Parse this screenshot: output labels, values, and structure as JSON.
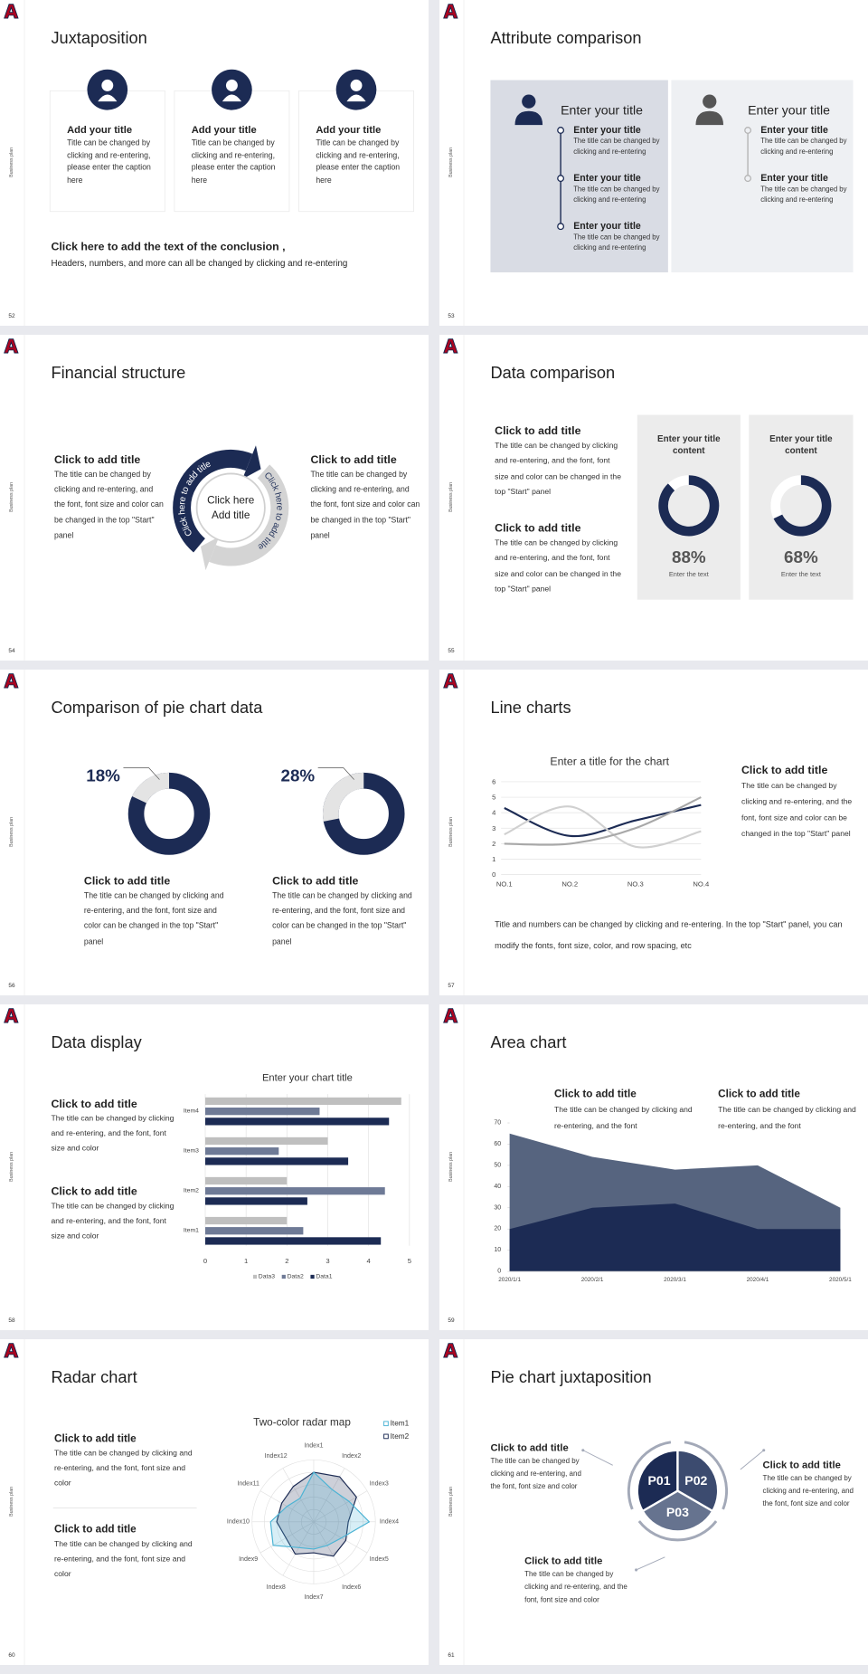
{
  "side_label": "Business plan",
  "slides": [
    {
      "number": 52,
      "title": "Juxtaposition",
      "cards": [
        {
          "title": "Add your title",
          "text": "Title can be changed by clicking and re-entering, please enter the caption here"
        },
        {
          "title": "Add your title",
          "text": "Title can be changed by clicking and re-entering, please enter the caption here"
        },
        {
          "title": "Add your title",
          "text": "Title can be changed by clicking and re-entering, please enter the caption here"
        }
      ],
      "conclusion_title": "Click here to add the text of the conclusion ,",
      "conclusion_text": "Headers, numbers, and more can all be changed by clicking and re-entering"
    },
    {
      "number": 53,
      "title": "Attribute comparison",
      "panels": [
        {
          "heading": "Enter your title",
          "items": [
            {
              "title": "Enter your title",
              "text": "The title can be changed by clicking and re-entering"
            },
            {
              "title": "Enter your title",
              "text": "The title can be changed by clicking and re-entering"
            },
            {
              "title": "Enter your title",
              "text": "The title can be changed by clicking and re-entering"
            }
          ]
        },
        {
          "heading": "Enter your title",
          "items": [
            {
              "title": "Enter your title",
              "text": "The title can be changed by clicking and re-entering"
            },
            {
              "title": "Enter your title",
              "text": "The title can be changed by clicking and re-entering"
            }
          ]
        }
      ]
    },
    {
      "number": 54,
      "title": "Financial structure",
      "blocks": [
        {
          "title": "Click to add title",
          "text": "The title can be changed by clicking and re-entering, and the font, font size and color can be changed in the top \"Start\" panel"
        },
        {
          "title": "Click to add title",
          "text": "The title can be changed by clicking and re-entering, and the font, font size and color can be changed in the top \"Start\" panel"
        }
      ],
      "cycle_labels": [
        "Click here to add title",
        "Click here to add title"
      ],
      "center": [
        "Click here",
        "Add title"
      ]
    },
    {
      "number": 55,
      "title": "Data comparison",
      "blocks": [
        {
          "title": "Click to add title",
          "text": "The title can be changed by clicking and re-entering, and the font, font size and color can be changed in the top \"Start\" panel"
        },
        {
          "title": "Click to add title",
          "text": "The title can be changed by clicking and re-entering, and the font, font size and color can be changed in the top \"Start\" panel"
        }
      ],
      "cards": [
        {
          "title": "Enter your title content",
          "value": 88,
          "value_label": "88%",
          "caption": "Enter the text"
        },
        {
          "title": "Enter your title content",
          "value": 68,
          "value_label": "68%",
          "caption": "Enter the text"
        }
      ]
    },
    {
      "number": 56,
      "title": "Comparison of pie chart data",
      "donuts": [
        {
          "value": 18,
          "value_label": "18%"
        },
        {
          "value": 28,
          "value_label": "28%"
        }
      ],
      "blocks": [
        {
          "title": "Click to add title",
          "text": "The title can be changed by clicking and re-entering, and the font, font size and color can be changed in the top \"Start\" panel"
        },
        {
          "title": "Click to add title",
          "text": "The title can be changed by clicking and re-entering, and the font, font size and color can be changed in the top \"Start\" panel"
        }
      ]
    },
    {
      "number": 57,
      "title": "Line charts",
      "chart": {
        "type": "line",
        "title": "Enter a title for the chart",
        "categories": [
          "NO.1",
          "NO.2",
          "NO.3",
          "NO.4"
        ],
        "ylim": [
          0,
          6
        ],
        "yticks": [
          0,
          1,
          2,
          3,
          4,
          5,
          6
        ],
        "series": [
          {
            "color": "#1c2b54",
            "values": [
              4.3,
              2.5,
              3.5,
              4.5
            ]
          },
          {
            "color": "#d0d0d0",
            "values": [
              2.6,
              4.4,
              1.8,
              2.8
            ]
          },
          {
            "color": "#a8a8a8",
            "values": [
              2.0,
              2.0,
              3.0,
              5.0
            ]
          }
        ]
      },
      "block": {
        "title": "Click to add title",
        "text": "The title can be changed by clicking and re-entering, and the font, font size and color can be changed in the top \"Start\" panel"
      },
      "note": "Title and numbers can be changed by clicking and re-entering. In the top \"Start\" panel, you can modify the fonts, font size, color, and row spacing, etc"
    },
    {
      "number": 58,
      "title": "Data display",
      "chart": {
        "type": "bar",
        "title": "Enter your chart title",
        "categories": [
          "Item1",
          "Item2",
          "Item3",
          "Item4"
        ],
        "xlim": [
          0,
          5
        ],
        "xticks": [
          0,
          1,
          2,
          3,
          4,
          5
        ],
        "series": [
          {
            "name": "Data3",
            "color": "#bfbfbf",
            "values": [
              2.0,
              2.0,
              3.0,
              4.8
            ]
          },
          {
            "name": "Data2",
            "color": "#6e7a96",
            "values": [
              2.4,
              4.4,
              1.8,
              2.8
            ]
          },
          {
            "name": "Data1",
            "color": "#1c2b54",
            "values": [
              4.3,
              2.5,
              3.5,
              4.5
            ]
          }
        ]
      },
      "blocks": [
        {
          "title": "Click to add title",
          "text": "The title can be changed by clicking and re-entering, and the font, font size and color"
        },
        {
          "title": "Click to add title",
          "text": "The title can be changed by clicking and re-entering, and the font, font size and color"
        }
      ]
    },
    {
      "number": 59,
      "title": "Area chart",
      "chart": {
        "type": "area",
        "x": [
          "2020/1/1",
          "2020/2/1",
          "2020/3/1",
          "2020/4/1",
          "2020/5/1"
        ],
        "ylim": [
          0,
          70
        ],
        "yticks": [
          0,
          10,
          20,
          30,
          40,
          50,
          60,
          70
        ],
        "series": [
          {
            "color": "#56647f",
            "values": [
              65,
              54,
              48,
              50,
              30
            ]
          },
          {
            "color": "#1c2b54",
            "values": [
              20,
              30,
              32,
              20,
              20
            ]
          }
        ]
      },
      "blocks": [
        {
          "title": "Click to add title",
          "text": "The title can be changed by clicking and re-entering, and the font"
        },
        {
          "title": "Click to add title",
          "text": "The title can be changed by clicking and re-entering, and the font"
        }
      ]
    },
    {
      "number": 60,
      "title": "Radar chart",
      "chart": {
        "type": "radar",
        "title": "Two-color radar map",
        "categories": [
          "Index1",
          "Index2",
          "Index3",
          "Index4",
          "Index5",
          "Index6",
          "Index7",
          "Index8",
          "Index9",
          "Index10",
          "Index11",
          "Index12"
        ],
        "rlim": [
          0,
          5
        ],
        "series": [
          {
            "name": "Item1",
            "color": "#4bb3d4",
            "values": [
              4.0,
              3.0,
              3.3,
              4.5,
              2.6,
              2.2,
              2.2,
              2.4,
              3.8,
              3.5,
              2.5,
              2.2
            ]
          },
          {
            "name": "Item2",
            "color": "#1c2b54",
            "values": [
              4.0,
              4.2,
              4.0,
              2.8,
              3.0,
              3.2,
              2.5,
              3.0,
              2.6,
              3.0,
              3.0,
              3.3
            ]
          }
        ]
      },
      "blocks": [
        {
          "title": "Click to add title",
          "text": "The title can be changed by clicking and re-entering, and the font, font size and color"
        },
        {
          "title": "Click to add title",
          "text": "The title can be changed by clicking and re-entering, and the font, font size and color"
        }
      ]
    },
    {
      "number": 61,
      "title": "Pie chart juxtaposition",
      "segments": [
        "P01",
        "P02",
        "P03"
      ],
      "blocks": [
        {
          "title": "Click to add title",
          "text": "The title can be changed by clicking and re-entering, and the font, font size and color"
        },
        {
          "title": "Click to add title",
          "text": "The title can be changed by clicking and re-entering, and the font, font size and color"
        },
        {
          "title": "Click to add title",
          "text": "The title can be changed by clicking and re-entering, and the font, font size and color"
        }
      ]
    }
  ]
}
